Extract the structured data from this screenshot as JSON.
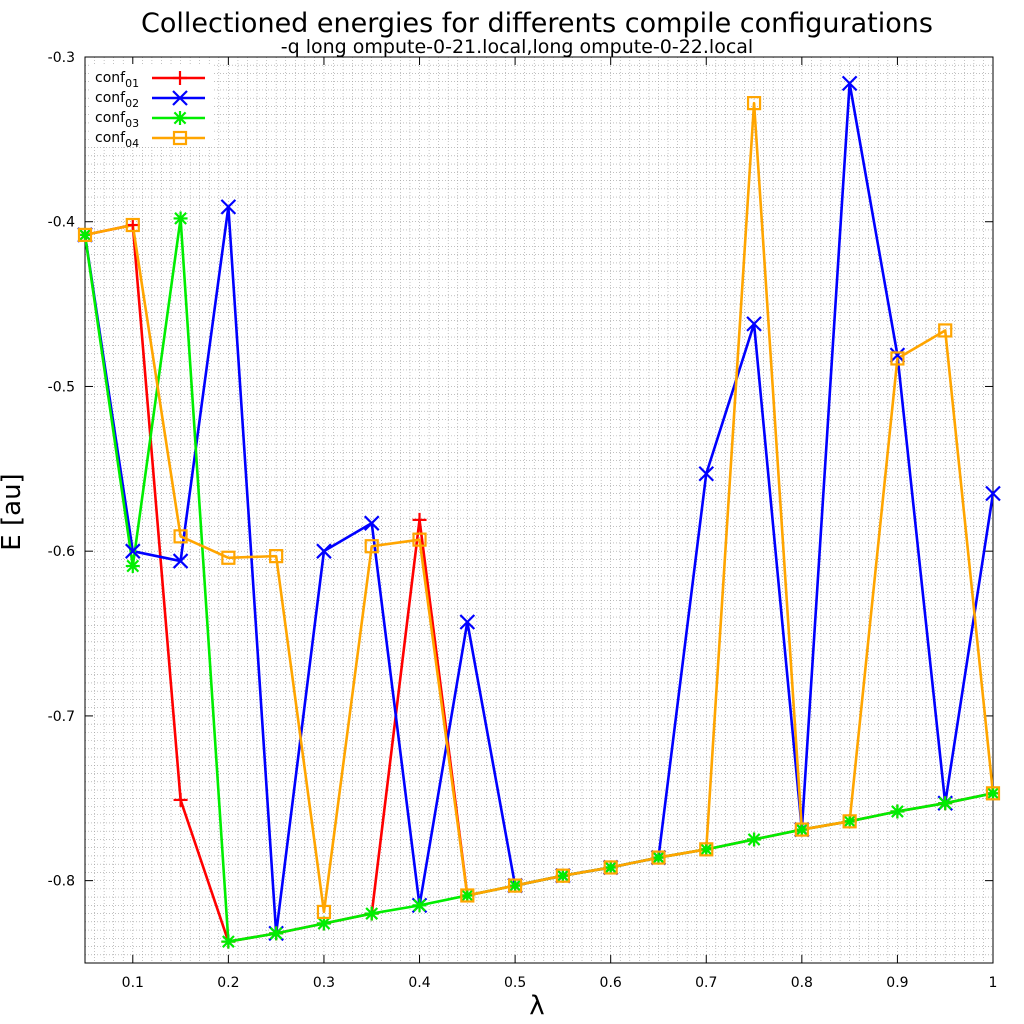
{
  "chart_data": {
    "type": "line",
    "title": "Collectioned energies for differents compile configurations",
    "subtitle": "-q long ompute-0-21.local,long ompute-0-22.local",
    "xlabel": "λ",
    "ylabel": "E [au]",
    "xlim": [
      0.05,
      1.0
    ],
    "ylim": [
      -0.85,
      -0.3
    ],
    "xticks": [
      0.1,
      0.2,
      0.3,
      0.4,
      0.5,
      0.6,
      0.7,
      0.8,
      0.9,
      1.0
    ],
    "xtick_labels": [
      "0.1",
      "0.2",
      "0.3",
      "0.4",
      "0.5",
      "0.6",
      "0.7",
      "0.8",
      "0.9",
      "1"
    ],
    "yticks": [
      -0.3,
      -0.4,
      -0.5,
      -0.6,
      -0.7,
      -0.8
    ],
    "ytick_labels": [
      "-0.3",
      "-0.4",
      "-0.5",
      "-0.6",
      "-0.7",
      "-0.8"
    ],
    "grid": true,
    "legend_position": "top-left",
    "series": [
      {
        "name": "conf",
        "subscript": "01",
        "color": "#ff0000",
        "marker": "plus",
        "points": [
          [
            0.05,
            -0.408
          ],
          [
            0.1,
            -0.402
          ],
          [
            0.15,
            -0.751
          ],
          [
            0.2,
            -0.837
          ],
          [
            0.25,
            -0.832
          ],
          [
            0.3,
            -0.826
          ],
          [
            0.35,
            -0.82
          ],
          [
            0.4,
            -0.581
          ],
          [
            0.45,
            -0.809
          ],
          [
            0.5,
            -0.803
          ],
          [
            0.55,
            -0.797
          ],
          [
            0.6,
            -0.792
          ],
          [
            0.65,
            -0.786
          ],
          [
            0.7,
            -0.781
          ],
          [
            0.75,
            -0.775
          ],
          [
            0.8,
            -0.769
          ],
          [
            0.85,
            -0.764
          ],
          [
            0.9,
            -0.758
          ],
          [
            0.95,
            -0.753
          ],
          [
            1.0,
            -0.747
          ]
        ]
      },
      {
        "name": "conf",
        "subscript": "02",
        "color": "#0000ff",
        "marker": "cross",
        "points": [
          [
            0.05,
            -0.408
          ],
          [
            0.1,
            -0.6
          ],
          [
            0.15,
            -0.606
          ],
          [
            0.2,
            -0.391
          ],
          [
            0.25,
            -0.832
          ],
          [
            0.3,
            -0.6
          ],
          [
            0.35,
            -0.583
          ],
          [
            0.4,
            -0.815
          ],
          [
            0.45,
            -0.643
          ],
          [
            0.5,
            -0.803
          ],
          [
            0.55,
            -0.797
          ],
          [
            0.6,
            -0.792
          ],
          [
            0.65,
            -0.786
          ],
          [
            0.7,
            -0.553
          ],
          [
            0.75,
            -0.462
          ],
          [
            0.8,
            -0.769
          ],
          [
            0.85,
            -0.316
          ],
          [
            0.9,
            -0.481
          ],
          [
            0.95,
            -0.753
          ],
          [
            1.0,
            -0.565
          ]
        ]
      },
      {
        "name": "conf",
        "subscript": "03",
        "color": "#00ee00",
        "marker": "star",
        "points": [
          [
            0.05,
            -0.408
          ],
          [
            0.1,
            -0.609
          ],
          [
            0.15,
            -0.398
          ],
          [
            0.2,
            -0.837
          ],
          [
            0.25,
            -0.832
          ],
          [
            0.3,
            -0.826
          ],
          [
            0.35,
            -0.82
          ],
          [
            0.4,
            -0.815
          ],
          [
            0.45,
            -0.809
          ],
          [
            0.5,
            -0.803
          ],
          [
            0.55,
            -0.797
          ],
          [
            0.6,
            -0.792
          ],
          [
            0.65,
            -0.786
          ],
          [
            0.7,
            -0.781
          ],
          [
            0.75,
            -0.775
          ],
          [
            0.8,
            -0.769
          ],
          [
            0.85,
            -0.764
          ],
          [
            0.9,
            -0.758
          ],
          [
            0.95,
            -0.753
          ],
          [
            1.0,
            -0.747
          ]
        ]
      },
      {
        "name": "conf",
        "subscript": "04",
        "color": "#ffa500",
        "marker": "square",
        "points": [
          [
            0.05,
            -0.408
          ],
          [
            0.1,
            -0.402
          ],
          [
            0.15,
            -0.591
          ],
          [
            0.2,
            -0.604
          ],
          [
            0.25,
            -0.603
          ],
          [
            0.3,
            -0.819
          ],
          [
            0.35,
            -0.597
          ],
          [
            0.4,
            -0.593
          ],
          [
            0.45,
            -0.809
          ],
          [
            0.5,
            -0.803
          ],
          [
            0.55,
            -0.797
          ],
          [
            0.6,
            -0.792
          ],
          [
            0.65,
            -0.786
          ],
          [
            0.7,
            -0.781
          ],
          [
            0.75,
            -0.328
          ],
          [
            0.8,
            -0.769
          ],
          [
            0.85,
            -0.764
          ],
          [
            0.9,
            -0.483
          ],
          [
            0.95,
            -0.466
          ],
          [
            1.0,
            -0.747
          ]
        ]
      }
    ]
  }
}
